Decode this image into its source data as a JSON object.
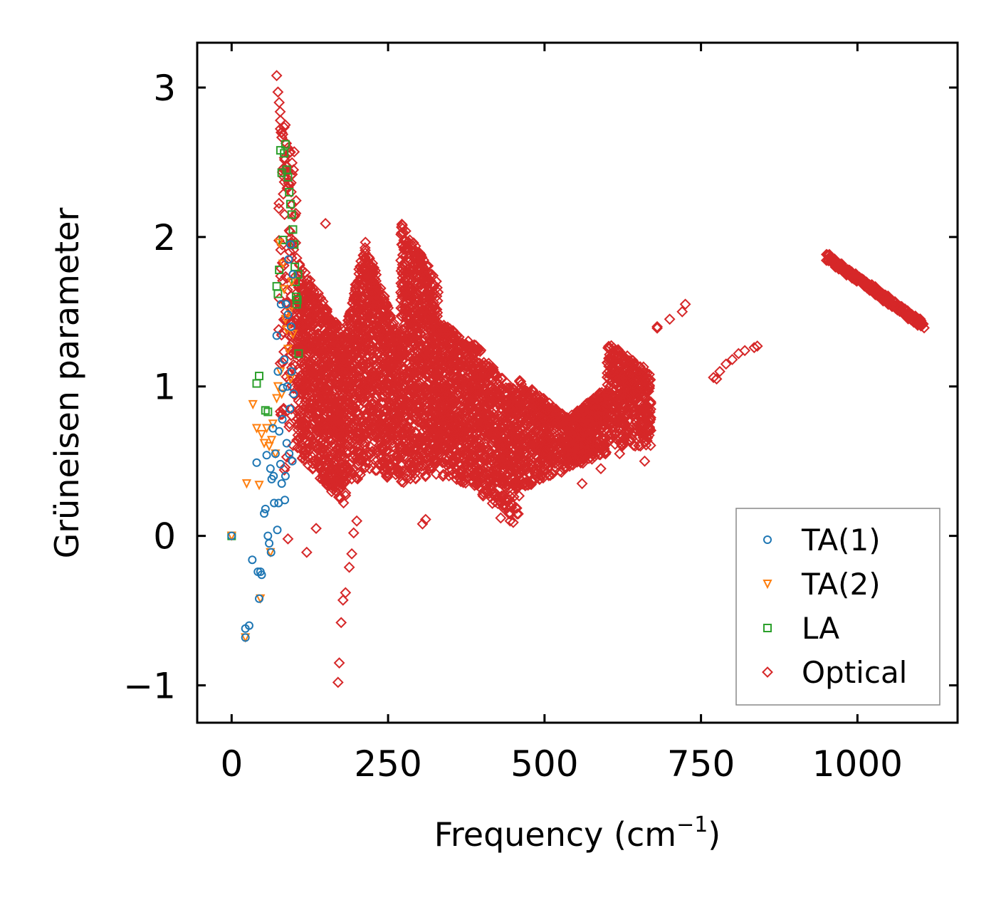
{
  "chart_data": {
    "type": "scatter",
    "title": "",
    "xlabel": "Frequency (cm",
    "xlabel_sup": "−1",
    "xlabel_close": ")",
    "ylabel": "Grüneisen parameter",
    "xlim": [
      -55,
      1160
    ],
    "ylim": [
      -1.25,
      3.3
    ],
    "xticks": [
      0,
      250,
      500,
      750,
      1000
    ],
    "xtick_labels": [
      "0",
      "250",
      "500",
      "750",
      "1000"
    ],
    "yticks": [
      -1,
      0,
      1,
      2,
      3
    ],
    "ytick_labels": [
      "−1",
      "0",
      "1",
      "2",
      "3"
    ],
    "grid": false,
    "legend_position": "lower-right",
    "series": [
      {
        "name": "TA(1)",
        "marker": "circle",
        "color": "#1f77b4",
        "points": [
          [
            0,
            0
          ],
          [
            22,
            -0.62
          ],
          [
            22,
            -0.68
          ],
          [
            28,
            -0.6
          ],
          [
            33,
            -0.16
          ],
          [
            40,
            0.49
          ],
          [
            42,
            -0.24
          ],
          [
            44,
            -0.42
          ],
          [
            46,
            -0.24
          ],
          [
            48,
            -0.26
          ],
          [
            52,
            0.15
          ],
          [
            54,
            0.18
          ],
          [
            56,
            0.54
          ],
          [
            58,
            0.0
          ],
          [
            60,
            -0.05
          ],
          [
            62,
            0.45
          ],
          [
            63,
            -0.11
          ],
          [
            64,
            0.38
          ],
          [
            66,
            0.72
          ],
          [
            67,
            0.4
          ],
          [
            68,
            0.22
          ],
          [
            70,
            0.55
          ],
          [
            72,
            1.34
          ],
          [
            73,
            0.04
          ],
          [
            74,
            1.1
          ],
          [
            75,
            0.22
          ],
          [
            76,
            0.7
          ],
          [
            78,
            0.48
          ],
          [
            79,
            1.55
          ],
          [
            80,
            0.35
          ],
          [
            81,
            0.78
          ],
          [
            82,
            0.99
          ],
          [
            84,
            1.18
          ],
          [
            85,
            0.24
          ],
          [
            86,
            0.4
          ],
          [
            87,
            1.55
          ],
          [
            88,
            0.62
          ],
          [
            89,
            1.0
          ],
          [
            90,
            1.48
          ],
          [
            91,
            1.85
          ],
          [
            92,
            0.55
          ],
          [
            93,
            0.85
          ],
          [
            94,
            1.95
          ],
          [
            95,
            1.4
          ],
          [
            96,
            1.1
          ],
          [
            97,
            0.5
          ],
          [
            98,
            1.75
          ],
          [
            99,
            0.95
          ]
        ]
      },
      {
        "name": "TA(2)",
        "marker": "triangle-down",
        "color": "#ff7f0e",
        "points": [
          [
            0,
            0
          ],
          [
            22,
            -0.68
          ],
          [
            24,
            0.35
          ],
          [
            34,
            0.88
          ],
          [
            40,
            0.72
          ],
          [
            44,
            0.34
          ],
          [
            46,
            -0.42
          ],
          [
            48,
            0.68
          ],
          [
            52,
            0.62
          ],
          [
            56,
            0.72
          ],
          [
            60,
            0.6
          ],
          [
            62,
            -0.11
          ],
          [
            64,
            0.64
          ],
          [
            66,
            0.75
          ],
          [
            70,
            0.55
          ],
          [
            72,
            0.92
          ],
          [
            74,
            1.0
          ],
          [
            76,
            1.96
          ],
          [
            78,
            1.1
          ],
          [
            80,
            0.95
          ],
          [
            82,
            1.82
          ],
          [
            84,
            1.65
          ],
          [
            86,
            1.45
          ],
          [
            88,
            1.38
          ],
          [
            90,
            1.25
          ],
          [
            92,
            1.5
          ],
          [
            94,
            1.05
          ],
          [
            96,
            1.7
          ],
          [
            98,
            1.35
          ]
        ]
      },
      {
        "name": "LA",
        "marker": "square",
        "color": "#2ca02c",
        "points": [
          [
            0,
            0
          ],
          [
            40,
            1.02
          ],
          [
            44,
            1.07
          ],
          [
            54,
            0.84
          ],
          [
            58,
            0.83
          ],
          [
            72,
            1.67
          ],
          [
            74,
            1.62
          ],
          [
            76,
            1.78
          ],
          [
            78,
            2.58
          ],
          [
            80,
            2.43
          ],
          [
            82,
            1.98
          ],
          [
            84,
            2.56
          ],
          [
            86,
            2.62
          ],
          [
            88,
            2.45
          ],
          [
            90,
            2.4
          ],
          [
            92,
            2.3
          ],
          [
            94,
            2.22
          ],
          [
            96,
            2.15
          ],
          [
            98,
            2.05
          ],
          [
            100,
            1.95
          ],
          [
            101,
            1.8
          ],
          [
            102,
            1.7
          ],
          [
            103,
            1.6
          ],
          [
            104,
            1.55
          ],
          [
            105,
            1.58
          ],
          [
            106,
            1.75
          ],
          [
            107,
            1.22
          ]
        ]
      },
      {
        "name": "Optical",
        "marker": "diamond",
        "color": "#d62728",
        "envelopes": [
          {
            "x0": 75,
            "x1": 105,
            "lo": [
              0.35,
              0.55
            ],
            "hi": [
              3.05,
              2.3
            ],
            "n": 130
          },
          {
            "x0": 105,
            "x1": 180,
            "lo": [
              0.55,
              0.2
            ],
            "hi": [
              1.85,
              1.35
            ],
            "n": 900
          },
          {
            "x0": 180,
            "x1": 215,
            "lo": [
              0.25,
              0.45
            ],
            "hi": [
              1.35,
              2.0
            ],
            "n": 400
          },
          {
            "x0": 215,
            "x1": 270,
            "lo": [
              0.45,
              0.35
            ],
            "hi": [
              1.95,
              1.3
            ],
            "n": 600
          },
          {
            "x0": 270,
            "x1": 330,
            "lo": [
              0.35,
              0.4
            ],
            "hi": [
              2.1,
              1.7
            ],
            "n": 800
          },
          {
            "x0": 330,
            "x1": 400,
            "lo": [
              0.4,
              0.3
            ],
            "hi": [
              1.45,
              1.25
            ],
            "n": 650
          },
          {
            "x0": 400,
            "x1": 460,
            "lo": [
              0.25,
              0.1
            ],
            "hi": [
              1.2,
              0.95
            ],
            "n": 500
          },
          {
            "x0": 460,
            "x1": 540,
            "lo": [
              0.3,
              0.45
            ],
            "hi": [
              1.05,
              0.78
            ],
            "n": 450
          },
          {
            "x0": 540,
            "x1": 600,
            "lo": [
              0.45,
              0.55
            ],
            "hi": [
              0.8,
              1.0
            ],
            "n": 380
          },
          {
            "x0": 600,
            "x1": 670,
            "lo": [
              0.6,
              0.6
            ],
            "hi": [
              1.3,
              1.1
            ],
            "n": 450
          }
        ],
        "points": [
          [
            72,
            3.08
          ],
          [
            74,
            2.97
          ],
          [
            76,
            2.9
          ],
          [
            78,
            2.78
          ],
          [
            100,
            2.57
          ],
          [
            150,
            2.09
          ],
          [
            170,
            -0.98
          ],
          [
            172,
            -0.85
          ],
          [
            175,
            -0.58
          ],
          [
            178,
            -0.43
          ],
          [
            182,
            -0.38
          ],
          [
            188,
            -0.21
          ],
          [
            192,
            -0.12
          ],
          [
            195,
            0.02
          ],
          [
            200,
            0.1
          ],
          [
            305,
            0.08
          ],
          [
            310,
            0.11
          ],
          [
            120,
            -0.11
          ],
          [
            135,
            0.05
          ],
          [
            90,
            -0.02
          ],
          [
            680,
            1.4
          ],
          [
            700,
            1.45
          ],
          [
            720,
            1.5
          ],
          [
            725,
            1.55
          ],
          [
            770,
            1.06
          ],
          [
            775,
            1.05
          ],
          [
            780,
            1.1
          ],
          [
            790,
            1.15
          ],
          [
            800,
            1.18
          ],
          [
            810,
            1.22
          ],
          [
            820,
            1.24
          ],
          [
            835,
            1.26
          ],
          [
            840,
            1.27
          ],
          [
            430,
            0.12
          ],
          [
            445,
            0.1
          ],
          [
            450,
            0.09
          ],
          [
            560,
            0.35
          ],
          [
            590,
            0.45
          ],
          [
            620,
            0.55
          ],
          [
            660,
            0.5
          ],
          [
            680,
            1.39
          ]
        ],
        "tail": {
          "x0": 950,
          "x1": 1105,
          "y0": 1.87,
          "y1": 1.41,
          "n": 260
        }
      }
    ]
  }
}
